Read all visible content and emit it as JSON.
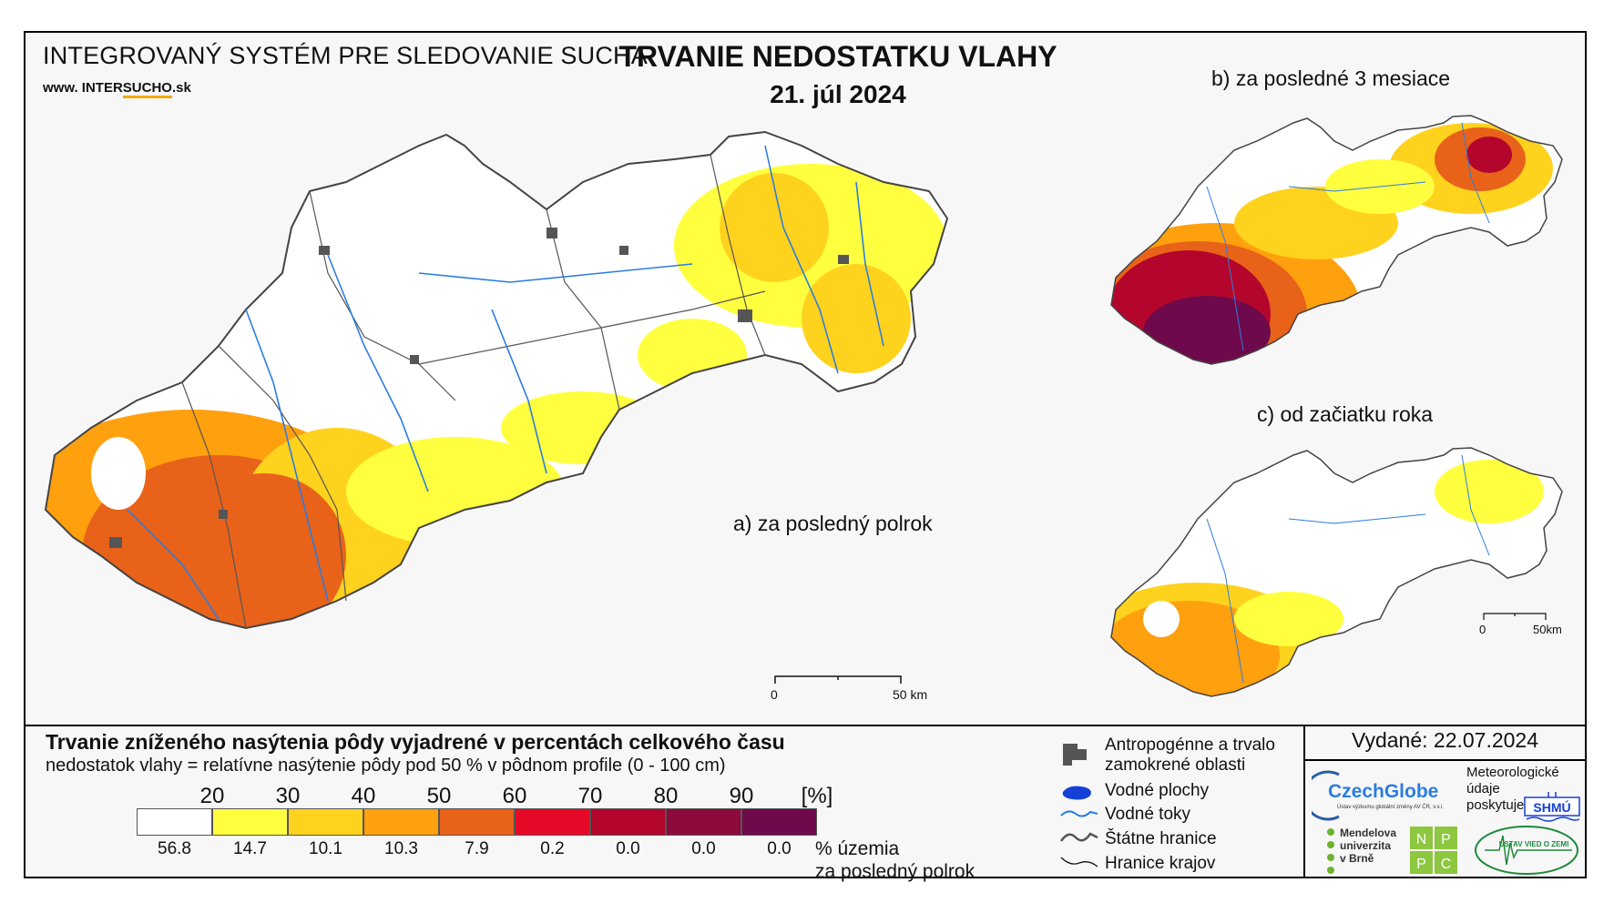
{
  "header": {
    "org": "INTEGROVANÝ SYSTÉM PRE SLEDOVANIE SUCHA",
    "url_prefix": "www. INTER",
    "url_highlight": "SUCHO",
    "url_suffix": ".sk",
    "title": "TRVANIE NEDOSTATKU VLAHY",
    "date": "21. júl 2024"
  },
  "maps": {
    "a_label": "a) za posledný polrok",
    "b_label": "b) za posledné 3 mesiace",
    "c_label": "c) od začiatku roka",
    "scale_main": {
      "zero": "0",
      "end": "50 km"
    },
    "scale_small": {
      "zero": "0",
      "end": "50km"
    }
  },
  "legend": {
    "title": "Trvanie zníženého nasýtenia pôdy vyjadrené v percentách celkového času",
    "subtitle": "nedostatok vlahy = relatívne nasýtenie pôdy pod 50 % v pôdnom profile (0 - 100 cm)",
    "class_breaks": [
      "20",
      "30",
      "40",
      "50",
      "60",
      "70",
      "80",
      "90",
      "[%]"
    ],
    "colors": [
      "#ffffff",
      "#ffff40",
      "#ffd21e",
      "#ffa00f",
      "#e8621a",
      "#e60a28",
      "#b4062c",
      "#8c0a3c",
      "#6e0a4b"
    ],
    "percent_values": [
      "56.8",
      "14.7",
      "10.1",
      "10.3",
      "7.9",
      "0.2",
      "0.0",
      "0.0",
      "0.0"
    ],
    "percent_note_1": "% územia",
    "percent_note_2": "za posledný polrok"
  },
  "symbols": {
    "anthropogenic_1": "Antropogénne a trvalo",
    "anthropogenic_2": "zamokrené oblasti",
    "water_bodies": "Vodné plochy",
    "rivers": "Vodné toky",
    "state_border": "Štátne hranice",
    "region_border": "Hranice krajov"
  },
  "issued": "Vydané: 22.07.2024",
  "logos": {
    "czechglobe": "CzechGlobe",
    "czechglobe_sub": "Ústav výzkumu globální změny AV ČR, v.v.i.",
    "shmu_note_1": "Meteorologické",
    "shmu_note_2": "údaje",
    "shmu_note_3": "poskytuje:",
    "shmu": "SHMÚ",
    "mendel_1": "Mendelova",
    "mendel_2": "univerzita",
    "mendel_3": "v Brně",
    "nppc": [
      "N",
      "P",
      "P",
      "C"
    ],
    "uvz": "ÚSTAV VIED O ZEMI"
  }
}
